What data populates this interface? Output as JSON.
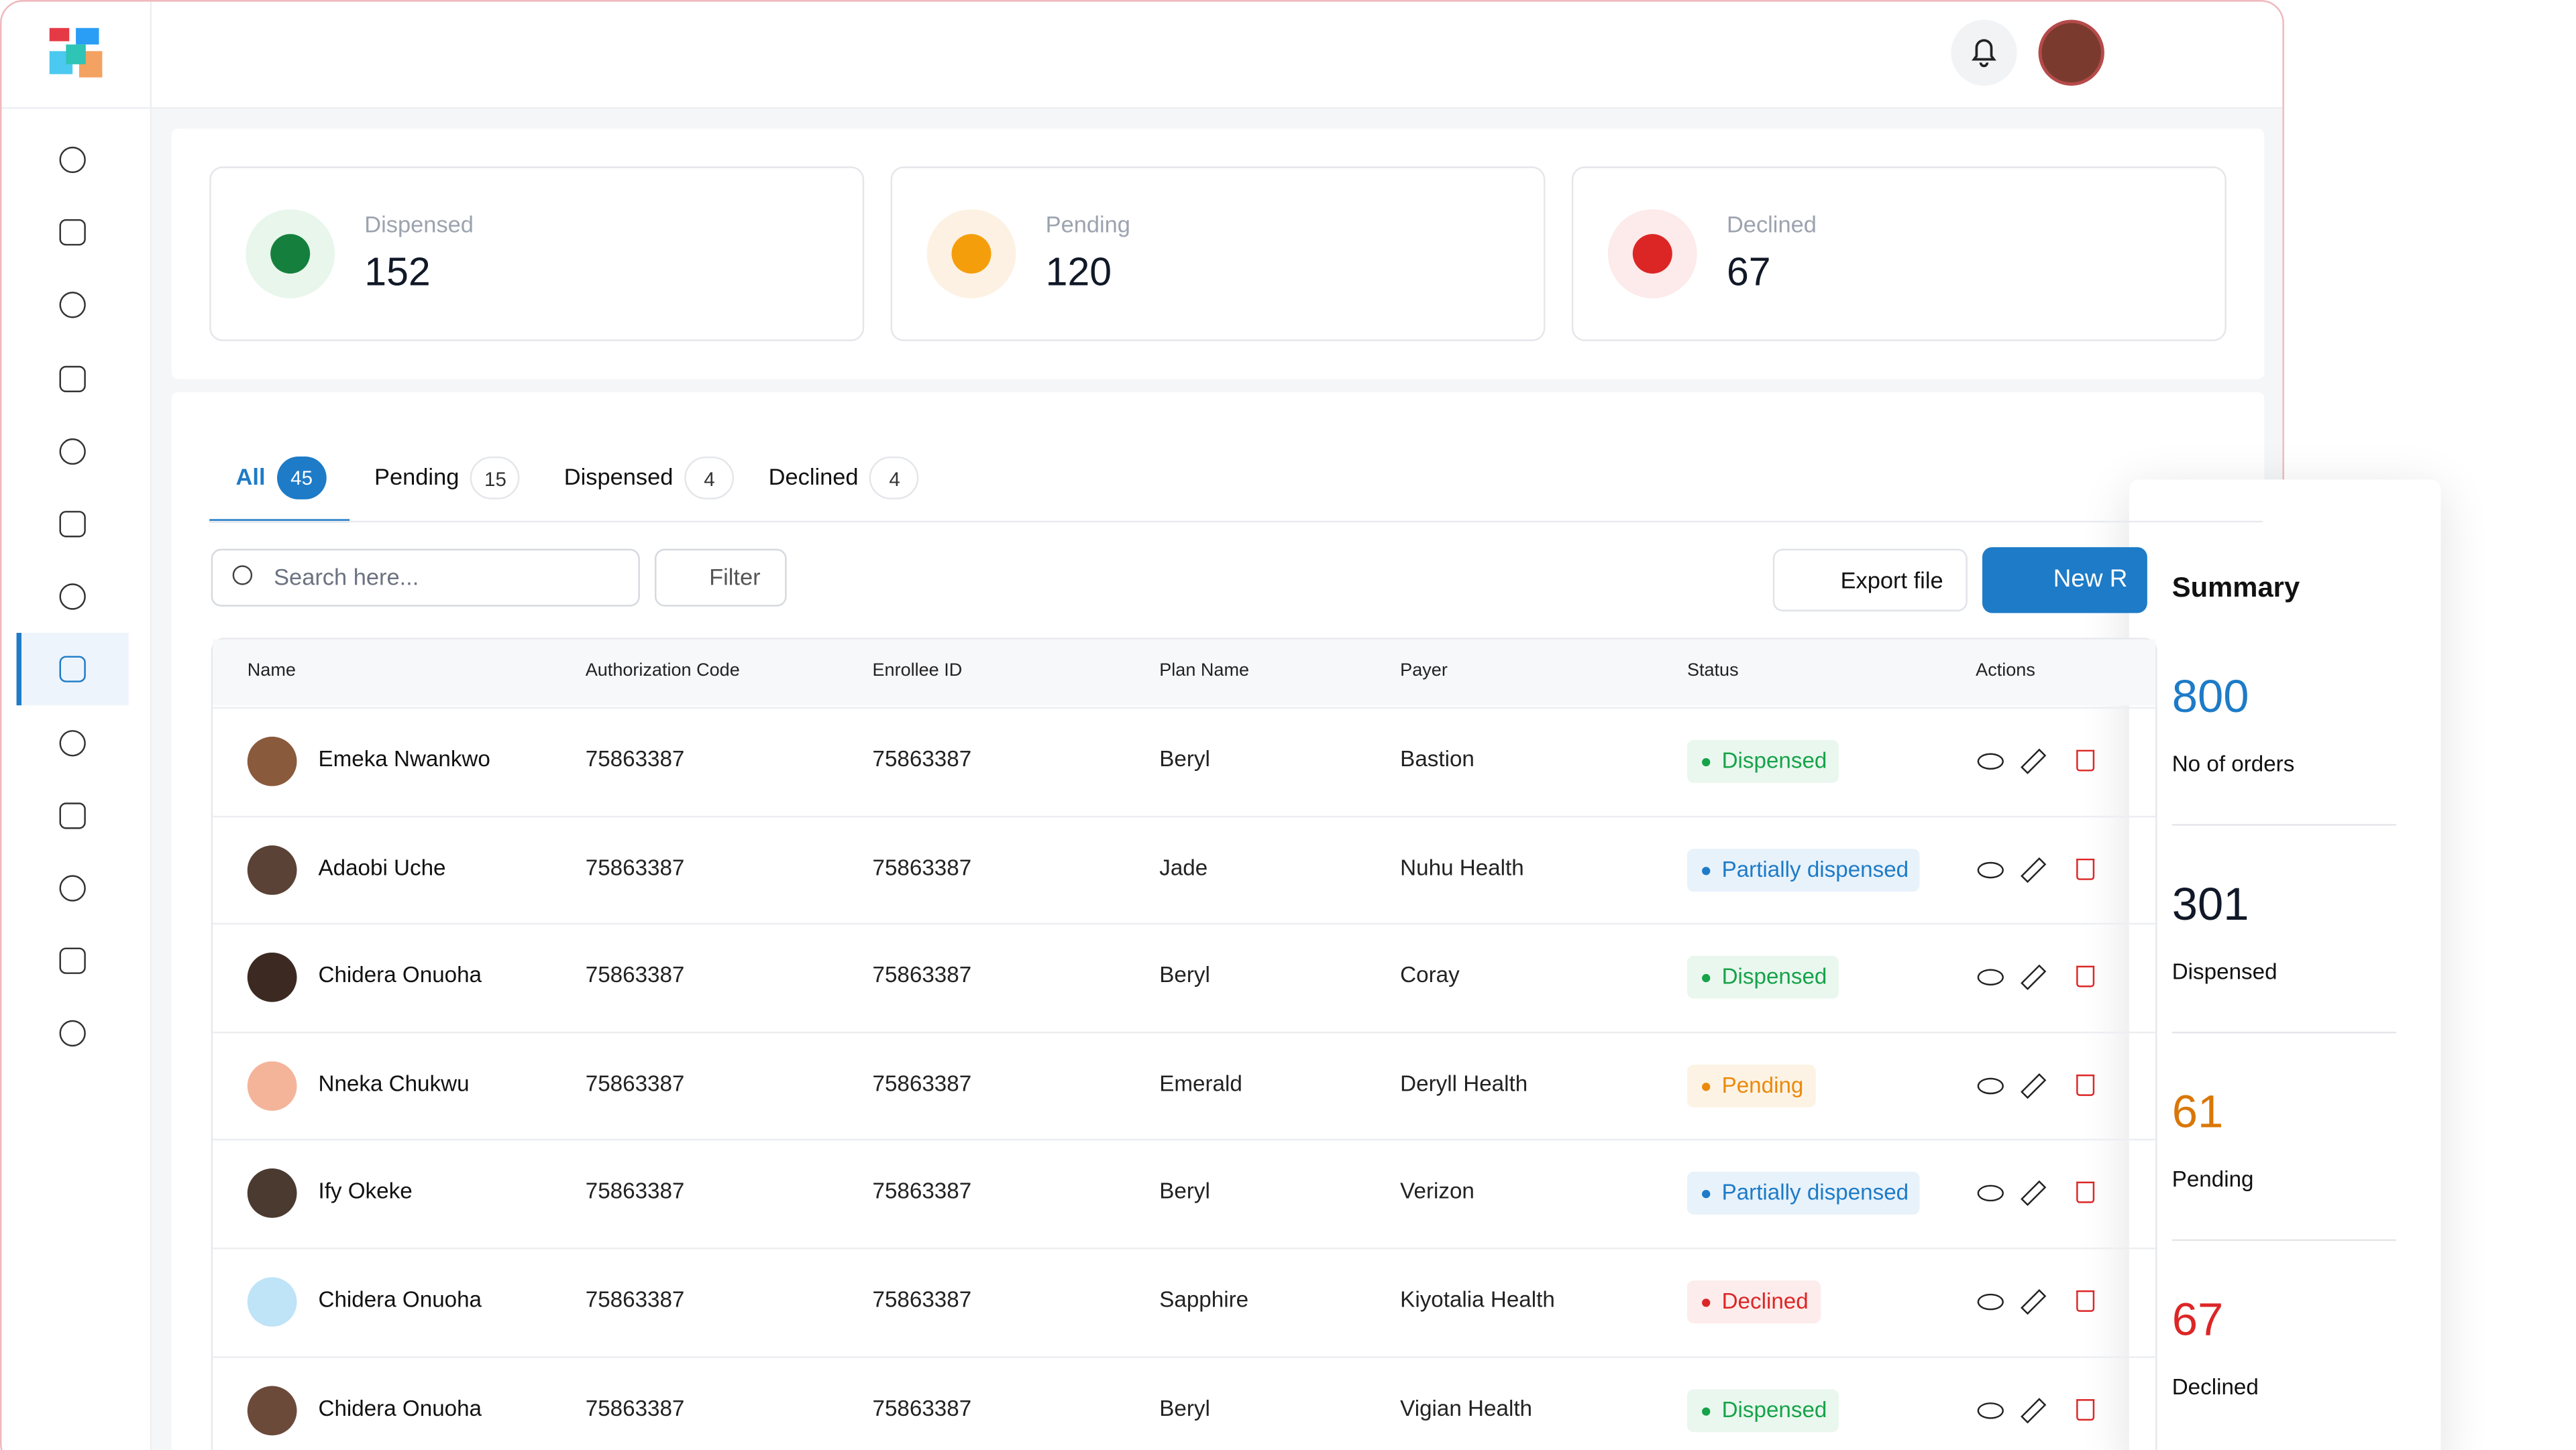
{
  "stats": [
    {
      "label": "Dispensed",
      "value": 152,
      "color": "#15803d",
      "bg": "#e8f6ec"
    },
    {
      "label": "Pending",
      "value": 120,
      "color": "#f59e0b",
      "bg": "#fdf1e3"
    },
    {
      "label": "Declined",
      "value": 67,
      "color": "#dc2626",
      "bg": "#fdeaea"
    }
  ],
  "tabs": [
    {
      "label": "All",
      "count": 45
    },
    {
      "label": "Pending",
      "count": 15
    },
    {
      "label": "Dispensed",
      "count": 4
    },
    {
      "label": "Declined",
      "count": 4
    }
  ],
  "search_placeholder": "Search here...",
  "filter": "Filter",
  "export": "Export file",
  "new_button": "New R",
  "table": {
    "columns": [
      "Name",
      "Authorization Code",
      "Enrollee ID",
      "Plan Name",
      "Payer",
      "Status",
      "Actions"
    ],
    "rows": [
      {
        "name": "Emeka Nwankwo",
        "auth": "75863387",
        "enrollee": "75863387",
        "plan": "Beryl",
        "payer": "Bastion",
        "status": "Dispensed",
        "status_color": "#16a34a",
        "status_bg": "#eaf7ee"
      },
      {
        "name": "Adaobi Uche",
        "auth": "75863387",
        "enrollee": "75863387",
        "plan": "Jade",
        "payer": "Nuhu Health",
        "status": "Partially dispensed",
        "status_color": "#1d7bc7",
        "status_bg": "#e8f2fb"
      },
      {
        "name": "Chidera Onuoha",
        "auth": "75863387",
        "enrollee": "75863387",
        "plan": "Beryl",
        "payer": "Coray",
        "status": "Dispensed",
        "status_color": "#16a34a",
        "status_bg": "#eaf7ee"
      },
      {
        "name": "Nneka Chukwu",
        "auth": "75863387",
        "enrollee": "75863387",
        "plan": "Emerald",
        "payer": "Deryll Health",
        "status": "Pending",
        "status_color": "#ea8a0c",
        "status_bg": "#fdf3e5"
      },
      {
        "name": "Ify Okeke",
        "auth": "75863387",
        "enrollee": "75863387",
        "plan": "Beryl",
        "payer": "Verizon",
        "status": "Partially dispensed",
        "status_color": "#1d7bc7",
        "status_bg": "#e8f2fb"
      },
      {
        "name": "Chidera Onuoha",
        "auth": "75863387",
        "enrollee": "75863387",
        "plan": "Sapphire",
        "payer": "Kiyotalia Health",
        "status": "Declined",
        "status_color": "#dc2626",
        "status_bg": "#fdecec"
      },
      {
        "name": "Chidera Onuoha",
        "auth": "75863387",
        "enrollee": "75863387",
        "plan": "Beryl",
        "payer": "Vigian Health",
        "status": "Dispensed",
        "status_color": "#16a34a",
        "status_bg": "#eaf7ee"
      }
    ]
  },
  "summary": {
    "title": "Summary",
    "items": [
      {
        "value": 800,
        "label": "No of orders",
        "color": "#1d7bc7"
      },
      {
        "value": 301,
        "label": "Dispensed",
        "color": "#111827"
      },
      {
        "value": 61,
        "label": "Pending",
        "color": "#d97706"
      },
      {
        "value": 67,
        "label": "Declined",
        "color": "#dc2626"
      }
    ]
  }
}
